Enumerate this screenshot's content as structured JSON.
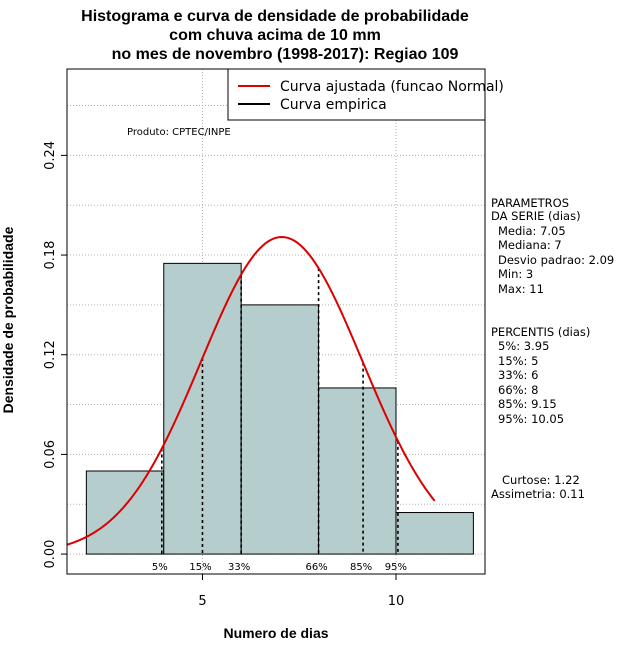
{
  "chart_data": {
    "type": "bar",
    "title_lines": [
      "Histograma e curva de densidade de probabilidade",
      "com chuva acima de 10 mm",
      "no mes de novembro (1998-2017): Regiao 109"
    ],
    "xlabel": "Numero de dias",
    "ylabel": "Densidade de probabilidade",
    "xlim": [
      1.5,
      12.3
    ],
    "ylim": [
      -0.012,
      0.292
    ],
    "x_ticks": [
      5,
      10
    ],
    "y_ticks": [
      0.0,
      0.06,
      0.12,
      0.18,
      0.24
    ],
    "y_tick_labels": [
      "0.00",
      "0.06",
      "0.12",
      "0.18",
      "0.24"
    ],
    "grid": true,
    "histogram": [
      {
        "x0": 2,
        "x1": 4,
        "density": 0.05
      },
      {
        "x0": 4,
        "x1": 6,
        "density": 0.175
      },
      {
        "x0": 6,
        "x1": 8,
        "density": 0.15
      },
      {
        "x0": 8,
        "x1": 10,
        "density": 0.1
      },
      {
        "x0": 10,
        "x1": 12,
        "density": 0.025
      }
    ],
    "bar_color": "#b5cecd",
    "normal_curve": {
      "name": "Curva ajustada (funcao Normal)",
      "mean": 7.05,
      "sd": 2.09,
      "x_range": [
        1.5,
        11
      ],
      "color": "#dd0000"
    },
    "empirical_curve_name": "Curva empirica",
    "empirical_color": "#000000",
    "percentile_lines": [
      {
        "label": "5%",
        "x": 3.95
      },
      {
        "label": "15%",
        "x": 5
      },
      {
        "label": "33%",
        "x": 6
      },
      {
        "label": "66%",
        "x": 8
      },
      {
        "label": "85%",
        "x": 9.15
      },
      {
        "label": "95%",
        "x": 10.05
      }
    ],
    "credit": "Produto: CPTEC/INPE",
    "legend_position": "top-right"
  },
  "side_panel": {
    "params_title_1": "PARAMETROS",
    "params_title_2": "DA SERIE (dias)",
    "media": "Media: 7.05",
    "mediana": "Mediana: 7",
    "desvio": "Desvio padrao: 2.09",
    "min": "Min: 3",
    "max": "Max: 11",
    "percentis_title": "PERCENTIS (dias)",
    "p5": "5%: 3.95",
    "p15": "15%: 5",
    "p33": "33%: 6",
    "p66": "66%: 8",
    "p85": "85%: 9.15",
    "p95": "95%: 10.05",
    "curtose": "Curtose: 1.22",
    "assimetria": "Assimetria: 0.11"
  }
}
